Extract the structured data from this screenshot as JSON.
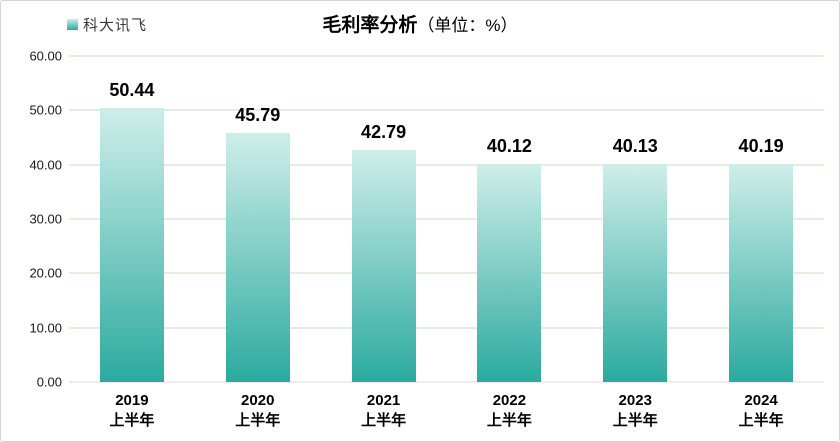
{
  "chart_data": {
    "type": "bar",
    "title": "毛利率分析",
    "title_unit": "（单位：%）",
    "legend": "科大讯飞",
    "legend_position": "top-left",
    "categories": [
      [
        "2019",
        "上半年"
      ],
      [
        "2020",
        "上半年"
      ],
      [
        "2021",
        "上半年"
      ],
      [
        "2022",
        "上半年"
      ],
      [
        "2023",
        "上半年"
      ],
      [
        "2024",
        "上半年"
      ]
    ],
    "values": [
      50.44,
      45.79,
      42.79,
      40.12,
      40.13,
      40.19
    ],
    "value_labels": [
      "50.44",
      "45.79",
      "42.79",
      "40.12",
      "40.13",
      "40.19"
    ],
    "ylim": [
      0,
      60
    ],
    "yticks": [
      "60.00",
      "50.00",
      "40.00",
      "30.00",
      "20.00",
      "10.00",
      "0.00"
    ],
    "grid": true,
    "colors": {
      "bar_top": "#cfeeea",
      "bar_bottom": "#2baa9f",
      "gridline": "#c0dfc2",
      "baseline": "#d9d9d9",
      "panel_border": "#d4d4d4"
    }
  }
}
